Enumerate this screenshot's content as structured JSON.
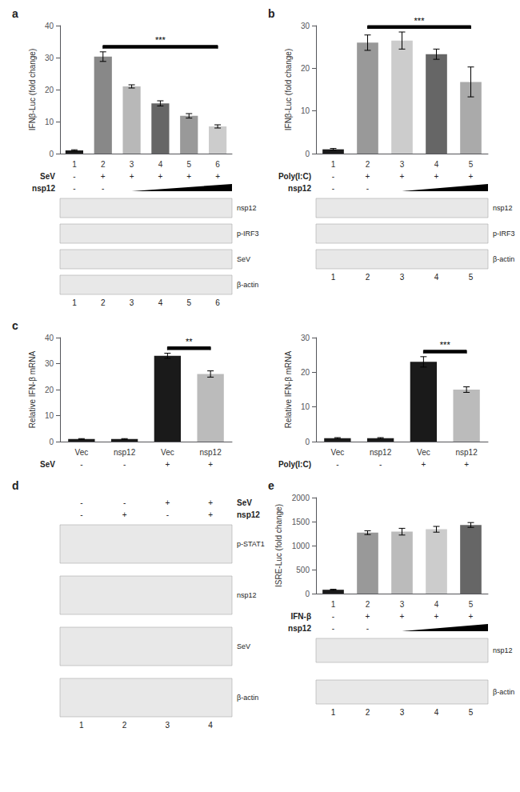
{
  "chart_data": [
    {
      "type": "bar",
      "title": "a",
      "ylabel": "IFNβ-Luc (fold change)",
      "categories": [
        "1",
        "2",
        "3",
        "4",
        "5",
        "6"
      ],
      "values": [
        1.0,
        30.3,
        21.0,
        15.7,
        11.8,
        8.5
      ],
      "errors": [
        0.2,
        1.5,
        0.5,
        0.8,
        0.7,
        0.5
      ],
      "colors": [
        "#1a1a1a",
        "#888888",
        "#b8b8b8",
        "#666666",
        "#999999",
        "#cccccc"
      ],
      "ylim": [
        0,
        40
      ],
      "yticks": [
        0,
        10,
        20,
        30,
        40
      ],
      "grid": false,
      "annotation": {
        "text": "***",
        "between": [
          1,
          5
        ]
      },
      "conditions": [
        {
          "name": "SeV",
          "labels": [
            "-",
            "+",
            "+",
            "+",
            "+",
            "+"
          ]
        },
        {
          "name": "nsp12",
          "labels": [
            "-",
            "-",
            null,
            null,
            null,
            null
          ]
        }
      ],
      "blots": [
        "nsp12",
        "p-IRF3",
        "SeV",
        "β-actin"
      ],
      "lanes": [
        "1",
        "2",
        "3",
        "4",
        "5",
        "6"
      ]
    },
    {
      "type": "bar",
      "title": "b",
      "ylabel": "IFNβ-Luc (fold change)",
      "categories": [
        "1",
        "2",
        "3",
        "4",
        "5"
      ],
      "values": [
        1.0,
        26.0,
        26.5,
        23.3,
        16.8
      ],
      "errors": [
        0.2,
        1.8,
        2.0,
        1.2,
        3.5
      ],
      "colors": [
        "#1a1a1a",
        "#999999",
        "#cccccc",
        "#666666",
        "#aaaaaa"
      ],
      "ylim": [
        0,
        30
      ],
      "yticks": [
        0,
        10,
        20,
        30
      ],
      "grid": false,
      "annotation": {
        "text": "***",
        "between": [
          1,
          4
        ]
      },
      "conditions": [
        {
          "name": "Poly(I:C)",
          "labels": [
            "-",
            "+",
            "+",
            "+",
            "+"
          ]
        },
        {
          "name": "nsp12",
          "labels": [
            "-",
            "-",
            null,
            null,
            null
          ]
        }
      ],
      "blots": [
        "nsp12",
        "p-IRF3",
        "β-actin"
      ],
      "lanes": [
        "1",
        "2",
        "3",
        "4",
        "5"
      ]
    },
    {
      "type": "bar",
      "title": "c",
      "ylabel": "Relative IFN-β mRNA",
      "categories": [
        "Vec",
        "nsp12",
        "Vec",
        "nsp12"
      ],
      "values": [
        1.0,
        1.0,
        33.0,
        26.0
      ],
      "errors": [
        0.15,
        0.15,
        1.0,
        1.2
      ],
      "colors": [
        "#1a1a1a",
        "#1a1a1a",
        "#1a1a1a",
        "#bbbbbb"
      ],
      "ylim": [
        0,
        40
      ],
      "yticks": [
        0,
        10,
        20,
        30,
        40
      ],
      "grid": false,
      "annotation": {
        "text": "**",
        "between": [
          2,
          3
        ]
      },
      "conditions": [
        {
          "name": "SeV",
          "labels": [
            "-",
            "-",
            "+",
            "+"
          ]
        }
      ]
    },
    {
      "type": "bar",
      "ylabel": "Relative IFN-β mRNA",
      "categories": [
        "Vec",
        "nsp12",
        "Vec",
        "nsp12"
      ],
      "values": [
        1.0,
        1.0,
        23.0,
        15.0
      ],
      "errors": [
        0.15,
        0.15,
        1.5,
        0.8
      ],
      "colors": [
        "#1a1a1a",
        "#1a1a1a",
        "#1a1a1a",
        "#bbbbbb"
      ],
      "ylim": [
        0,
        30
      ],
      "yticks": [
        0,
        10,
        20,
        30
      ],
      "grid": false,
      "annotation": {
        "text": "***",
        "between": [
          2,
          3
        ]
      },
      "conditions": [
        {
          "name": "Poly(I:C)",
          "labels": [
            "-",
            "-",
            "+",
            "+"
          ]
        }
      ]
    },
    {
      "type": "blot",
      "title": "d",
      "conditions": [
        {
          "name": "SeV",
          "labels": [
            "-",
            "-",
            "+",
            "+"
          ]
        },
        {
          "name": "nsp12",
          "labels": [
            "-",
            "+",
            "-",
            "+"
          ]
        }
      ],
      "blots": [
        "p-STAT1",
        "nsp12",
        "SeV",
        "β-actin"
      ],
      "lanes": [
        "1",
        "2",
        "3",
        "4"
      ]
    },
    {
      "type": "bar",
      "title": "e",
      "ylabel": "ISRE-Luc (fold change)",
      "categories": [
        "1",
        "2",
        "3",
        "4",
        "5"
      ],
      "values": [
        80,
        1270,
        1290,
        1340,
        1430
      ],
      "errors": [
        10,
        40,
        70,
        60,
        50
      ],
      "colors": [
        "#1a1a1a",
        "#999999",
        "#bbbbbb",
        "#cccccc",
        "#666666"
      ],
      "ylim": [
        0,
        2000
      ],
      "yticks": [
        0,
        500,
        1000,
        1500,
        2000
      ],
      "grid": false,
      "conditions": [
        {
          "name": "IFN-β",
          "labels": [
            "-",
            "+",
            "+",
            "+",
            "+"
          ]
        },
        {
          "name": "nsp12",
          "labels": [
            "-",
            "-",
            null,
            null,
            null
          ]
        }
      ],
      "blots": [
        "nsp12",
        "β-actin"
      ],
      "lanes": [
        "1",
        "2",
        "3",
        "4",
        "5"
      ]
    }
  ]
}
